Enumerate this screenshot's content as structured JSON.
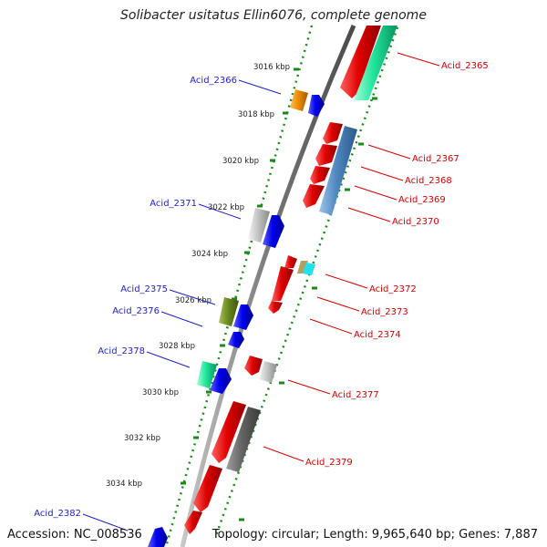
{
  "title": "Solibacter usitatus Ellin6076, complete genome",
  "accession": "Accession: NC_008536",
  "topology": "Topology: circular; Length: 9,965,640 bp; Genes: 7,887",
  "ticks": [
    "3016 kbp",
    "3018 kbp",
    "3020 kbp",
    "3022 kbp",
    "3024 kbp",
    "3026 kbp",
    "3028 kbp",
    "3030 kbp",
    "3032 kbp",
    "3034 kbp"
  ],
  "gene_labels": {
    "acid_2366": "Acid_2366",
    "acid_2371": "Acid_2371",
    "acid_2375": "Acid_2375",
    "acid_2376": "Acid_2376",
    "acid_2378": "Acid_2378",
    "acid_2382": "Acid_2382",
    "acid_2365": "Acid_2365",
    "acid_2367": "Acid_2367",
    "acid_2368": "Acid_2368",
    "acid_2369": "Acid_2369",
    "acid_2370": "Acid_2370",
    "acid_2372": "Acid_2372",
    "acid_2373": "Acid_2373",
    "acid_2374": "Acid_2374",
    "acid_2377": "Acid_2377",
    "acid_2379": "Acid_2379"
  },
  "colors": {
    "backbone": "#7a7a7a",
    "ring_dots": "#1a8a1a",
    "gene_red": "#e00000",
    "gene_blue": "#0000ee",
    "gene_orange": "#f08c00",
    "gene_mint": "#1fe59a",
    "gene_steel": "#4f87c0",
    "gene_silver": "#c4c4c4",
    "gene_olive": "#6b8a1f",
    "gene_tan": "#b2a060",
    "gene_cyan": "#22e0ee",
    "gene_darkgray": "#646464",
    "label_left": "#1f1fc4",
    "label_right": "#d00000"
  }
}
